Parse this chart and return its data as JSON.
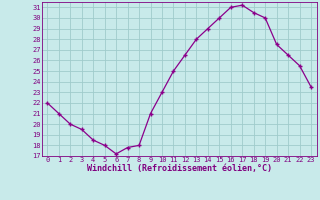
{
  "x": [
    0,
    1,
    2,
    3,
    4,
    5,
    6,
    7,
    8,
    9,
    10,
    11,
    12,
    13,
    14,
    15,
    16,
    17,
    18,
    19,
    20,
    21,
    22,
    23
  ],
  "y": [
    22,
    21,
    20,
    19.5,
    18.5,
    18,
    17.2,
    17.8,
    18,
    21,
    23,
    25,
    26.5,
    28,
    29,
    30,
    31,
    31.2,
    30.5,
    30,
    27.5,
    26.5,
    25.5,
    23.5
  ],
  "line_color": "#8B008B",
  "background_color": "#c8eaea",
  "grid_color": "#a0cccc",
  "xlabel": "Windchill (Refroidissement éolien,°C)",
  "xlim": [
    -0.5,
    23.5
  ],
  "ylim": [
    17,
    31.5
  ],
  "yticks": [
    17,
    18,
    19,
    20,
    21,
    22,
    23,
    24,
    25,
    26,
    27,
    28,
    29,
    30,
    31
  ],
  "xticks": [
    0,
    1,
    2,
    3,
    4,
    5,
    6,
    7,
    8,
    9,
    10,
    11,
    12,
    13,
    14,
    15,
    16,
    17,
    18,
    19,
    20,
    21,
    22,
    23
  ],
  "tick_color": "#800080",
  "label_color": "#800080",
  "axis_color": "#800080",
  "font_family": "monospace",
  "tick_fontsize": 5.0,
  "xlabel_fontsize": 6.0
}
